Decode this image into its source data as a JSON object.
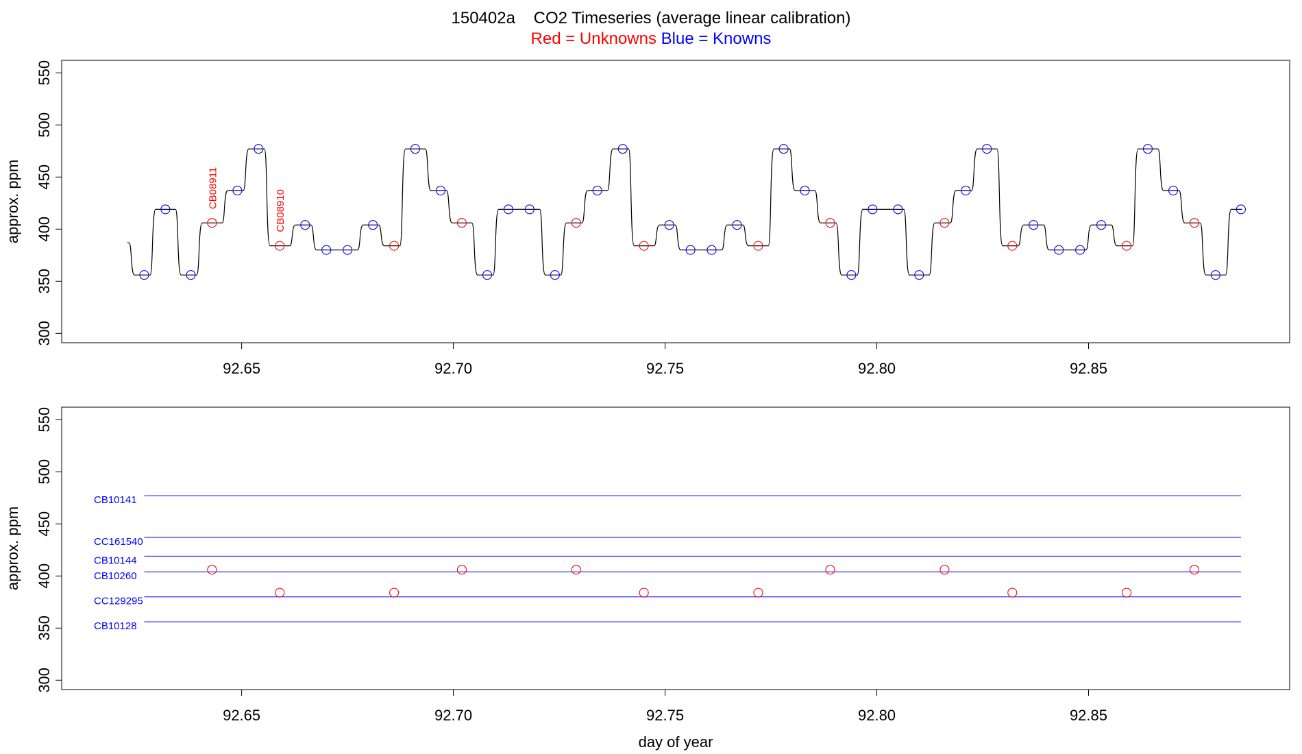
{
  "title": "150402a    CO2 Timeseries (average linear calibration)",
  "subtitle": {
    "red_text": "Red = Unknowns",
    "blue_text": "Blue = Knowns"
  },
  "colors": {
    "unknown": "#ff0000",
    "known": "#0000ff",
    "trace": "#000000"
  },
  "chart_data": [
    {
      "type": "line",
      "panel": "top",
      "ylabel": "approx. ppm",
      "xlabel": "",
      "xlim": [
        92.6075,
        92.8975
      ],
      "ylim": [
        291,
        562
      ],
      "xticks": [
        "92.65",
        "92.70",
        "92.75",
        "92.80",
        "92.85"
      ],
      "yticks": [
        "300",
        "350",
        "400",
        "450",
        "500",
        "550"
      ],
      "trace_start": [
        92.623,
        387
      ],
      "steps": [
        {
          "x": 92.627,
          "y": 356,
          "kind": "known"
        },
        {
          "x": 92.632,
          "y": 419,
          "kind": "known"
        },
        {
          "x": 92.638,
          "y": 356,
          "kind": "known"
        },
        {
          "x": 92.643,
          "y": 406,
          "kind": "unknown"
        },
        {
          "x": 92.649,
          "y": 437,
          "kind": "known"
        },
        {
          "x": 92.654,
          "y": 477,
          "kind": "known"
        },
        {
          "x": 92.659,
          "y": 384,
          "kind": "unknown"
        },
        {
          "x": 92.665,
          "y": 404,
          "kind": "known"
        },
        {
          "x": 92.67,
          "y": 380,
          "kind": "known"
        },
        {
          "x": 92.675,
          "y": 380,
          "kind": "known"
        },
        {
          "x": 92.681,
          "y": 404,
          "kind": "known"
        },
        {
          "x": 92.686,
          "y": 384,
          "kind": "unknown"
        },
        {
          "x": 92.691,
          "y": 477,
          "kind": "known"
        },
        {
          "x": 92.697,
          "y": 437,
          "kind": "known"
        },
        {
          "x": 92.702,
          "y": 406,
          "kind": "unknown"
        },
        {
          "x": 92.708,
          "y": 356,
          "kind": "known"
        },
        {
          "x": 92.713,
          "y": 419,
          "kind": "known"
        },
        {
          "x": 92.718,
          "y": 419,
          "kind": "known"
        },
        {
          "x": 92.724,
          "y": 356,
          "kind": "known"
        },
        {
          "x": 92.729,
          "y": 406,
          "kind": "unknown"
        },
        {
          "x": 92.734,
          "y": 437,
          "kind": "known"
        },
        {
          "x": 92.74,
          "y": 477,
          "kind": "known"
        },
        {
          "x": 92.745,
          "y": 384,
          "kind": "unknown"
        },
        {
          "x": 92.751,
          "y": 404,
          "kind": "known"
        },
        {
          "x": 92.756,
          "y": 380,
          "kind": "known"
        },
        {
          "x": 92.761,
          "y": 380,
          "kind": "known"
        },
        {
          "x": 92.767,
          "y": 404,
          "kind": "known"
        },
        {
          "x": 92.772,
          "y": 384,
          "kind": "unknown"
        },
        {
          "x": 92.778,
          "y": 477,
          "kind": "known"
        },
        {
          "x": 92.783,
          "y": 437,
          "kind": "known"
        },
        {
          "x": 92.789,
          "y": 406,
          "kind": "unknown"
        },
        {
          "x": 92.794,
          "y": 356,
          "kind": "known"
        },
        {
          "x": 92.799,
          "y": 419,
          "kind": "known"
        },
        {
          "x": 92.805,
          "y": 419,
          "kind": "known"
        },
        {
          "x": 92.81,
          "y": 356,
          "kind": "known"
        },
        {
          "x": 92.816,
          "y": 406,
          "kind": "unknown"
        },
        {
          "x": 92.821,
          "y": 437,
          "kind": "known"
        },
        {
          "x": 92.826,
          "y": 477,
          "kind": "known"
        },
        {
          "x": 92.832,
          "y": 384,
          "kind": "unknown"
        },
        {
          "x": 92.837,
          "y": 404,
          "kind": "known"
        },
        {
          "x": 92.843,
          "y": 380,
          "kind": "known"
        },
        {
          "x": 92.848,
          "y": 380,
          "kind": "known"
        },
        {
          "x": 92.853,
          "y": 404,
          "kind": "known"
        },
        {
          "x": 92.859,
          "y": 384,
          "kind": "unknown"
        },
        {
          "x": 92.864,
          "y": 477,
          "kind": "known"
        },
        {
          "x": 92.87,
          "y": 437,
          "kind": "known"
        },
        {
          "x": 92.875,
          "y": 406,
          "kind": "unknown"
        },
        {
          "x": 92.88,
          "y": 356,
          "kind": "known"
        },
        {
          "x": 92.886,
          "y": 419,
          "kind": "known"
        }
      ],
      "annotations": [
        {
          "text": "CB08911",
          "x": 92.643,
          "y": 406,
          "color": "#ff0000"
        },
        {
          "text": "CB08910",
          "x": 92.659,
          "y": 384,
          "color": "#ff0000"
        }
      ]
    },
    {
      "type": "scatter",
      "panel": "bottom",
      "ylabel": "approx. ppm",
      "xlabel": "day of year",
      "xlim": [
        92.6075,
        92.8975
      ],
      "ylim": [
        291,
        562
      ],
      "xticks": [
        "92.65",
        "92.70",
        "92.75",
        "92.80",
        "92.85"
      ],
      "yticks": [
        "300",
        "350",
        "400",
        "450",
        "500",
        "550"
      ],
      "reference_lines": [
        {
          "name": "CB10141",
          "y": 477,
          "x_range": [
            92.627,
            92.886
          ]
        },
        {
          "name": "CC161540",
          "y": 437,
          "x_range": [
            92.627,
            92.886
          ]
        },
        {
          "name": "CB10144",
          "y": 419,
          "x_range": [
            92.627,
            92.886
          ]
        },
        {
          "name": "CB10260",
          "y": 404,
          "x_range": [
            92.627,
            92.886
          ]
        },
        {
          "name": "CC129295",
          "y": 380,
          "x_range": [
            92.627,
            92.886
          ]
        },
        {
          "name": "CB10128",
          "y": 356,
          "x_range": [
            92.627,
            92.886
          ]
        }
      ],
      "points": [
        {
          "x": 92.643,
          "y": 406
        },
        {
          "x": 92.659,
          "y": 384
        },
        {
          "x": 92.686,
          "y": 384
        },
        {
          "x": 92.702,
          "y": 406
        },
        {
          "x": 92.729,
          "y": 406
        },
        {
          "x": 92.745,
          "y": 384
        },
        {
          "x": 92.772,
          "y": 384
        },
        {
          "x": 92.789,
          "y": 406
        },
        {
          "x": 92.816,
          "y": 406
        },
        {
          "x": 92.832,
          "y": 384
        },
        {
          "x": 92.859,
          "y": 384
        },
        {
          "x": 92.875,
          "y": 406
        }
      ]
    }
  ]
}
